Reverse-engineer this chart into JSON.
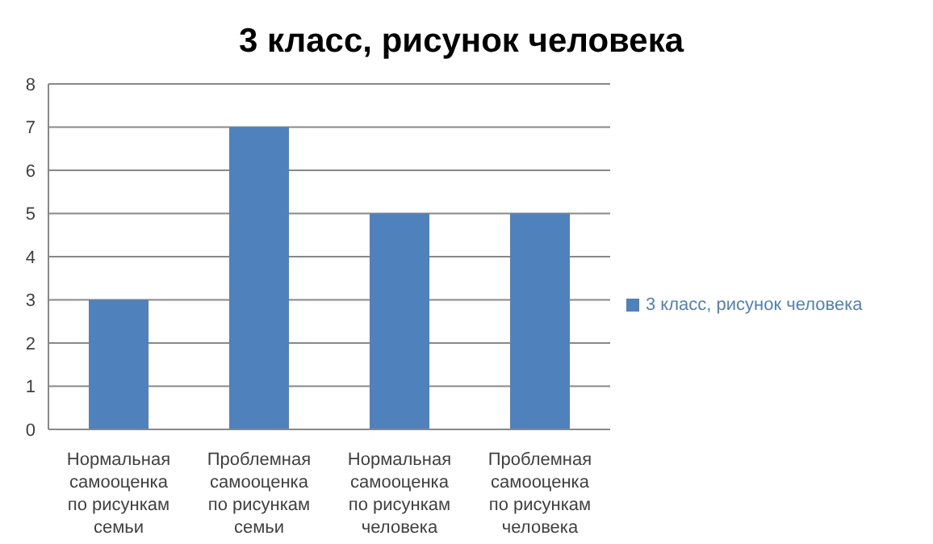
{
  "chart_data": {
    "type": "bar",
    "title": "3 класс, рисунок человека",
    "categories": [
      "Нормальная самооценка по рисункам семьи",
      "Проблемная самооценка по рисункам семьи",
      "Нормальная самооценка по рисункам человека",
      "Проблемная самооценка по рисункам человека"
    ],
    "series": [
      {
        "name": "3 класс, рисунок человека",
        "color": "#4f81bd",
        "values": [
          3,
          7,
          5,
          5
        ]
      }
    ],
    "ylim": [
      0,
      8
    ],
    "yticks": [
      0,
      1,
      2,
      3,
      4,
      5,
      6,
      7,
      8
    ],
    "grid": "y",
    "legend": "right"
  }
}
